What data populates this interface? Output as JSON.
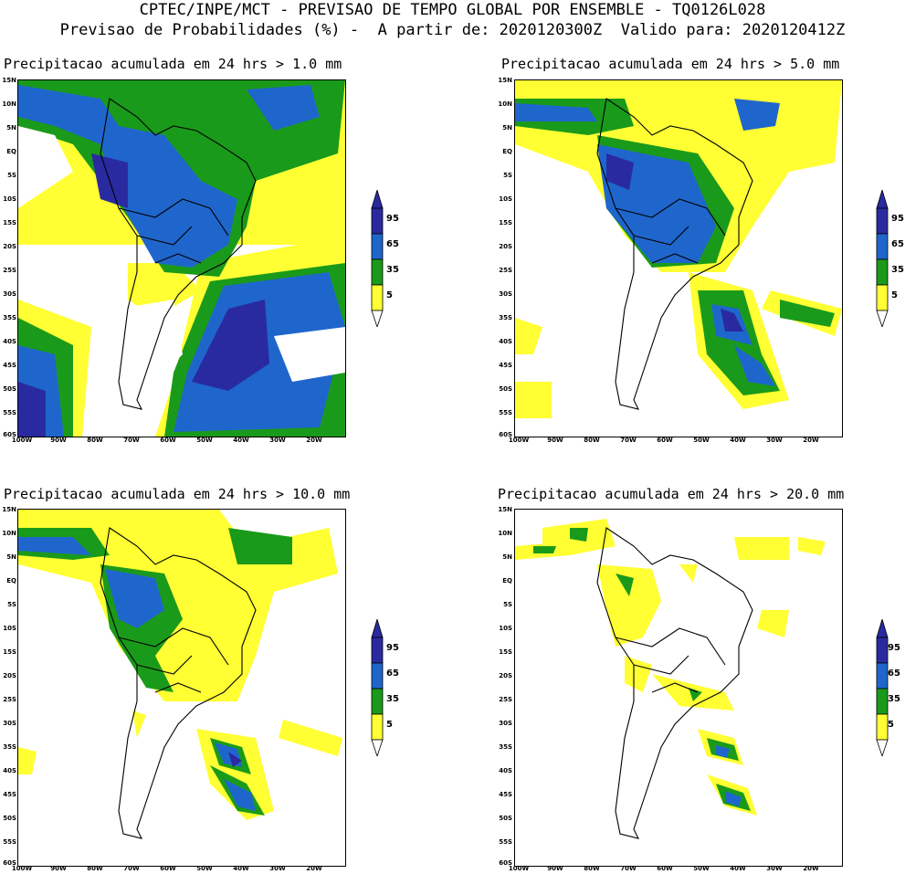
{
  "header": {
    "line1": "CPTEC/INPE/MCT - PREVISAO DE TEMPO GLOBAL POR ENSEMBLE - TQ0126L028",
    "line2": "Previsao de Probabilidades (%) -  A partir de: 2020120300Z  Valido para: 2020120412Z"
  },
  "panels": [
    {
      "title": "Precipitacao acumulada em 24 hrs > 1.0 mm"
    },
    {
      "title": "Precipitacao acumulada em 24 hrs > 5.0 mm"
    },
    {
      "title": "Precipitacao acumulada em 24 hrs > 10.0 mm"
    },
    {
      "title": "Precipitacao acumulada em 24 hrs > 20.0 mm"
    }
  ],
  "lat_labels": [
    "15N",
    "10N",
    "5N",
    "EQ",
    "5S",
    "10S",
    "15S",
    "20S",
    "25S",
    "30S",
    "35S",
    "40S",
    "45S",
    "50S",
    "55S",
    "60S"
  ],
  "lon_labels": [
    "100W",
    "90W",
    "80W",
    "70W",
    "60W",
    "50W",
    "40W",
    "30W",
    "20W"
  ],
  "colorbar": {
    "labels": [
      "95",
      "65",
      "35",
      "5"
    ],
    "colors": {
      "p5": "#ffff33",
      "p35": "#1a9a1a",
      "p65": "#1f66cc",
      "p95": "#2a2aa0"
    }
  }
}
